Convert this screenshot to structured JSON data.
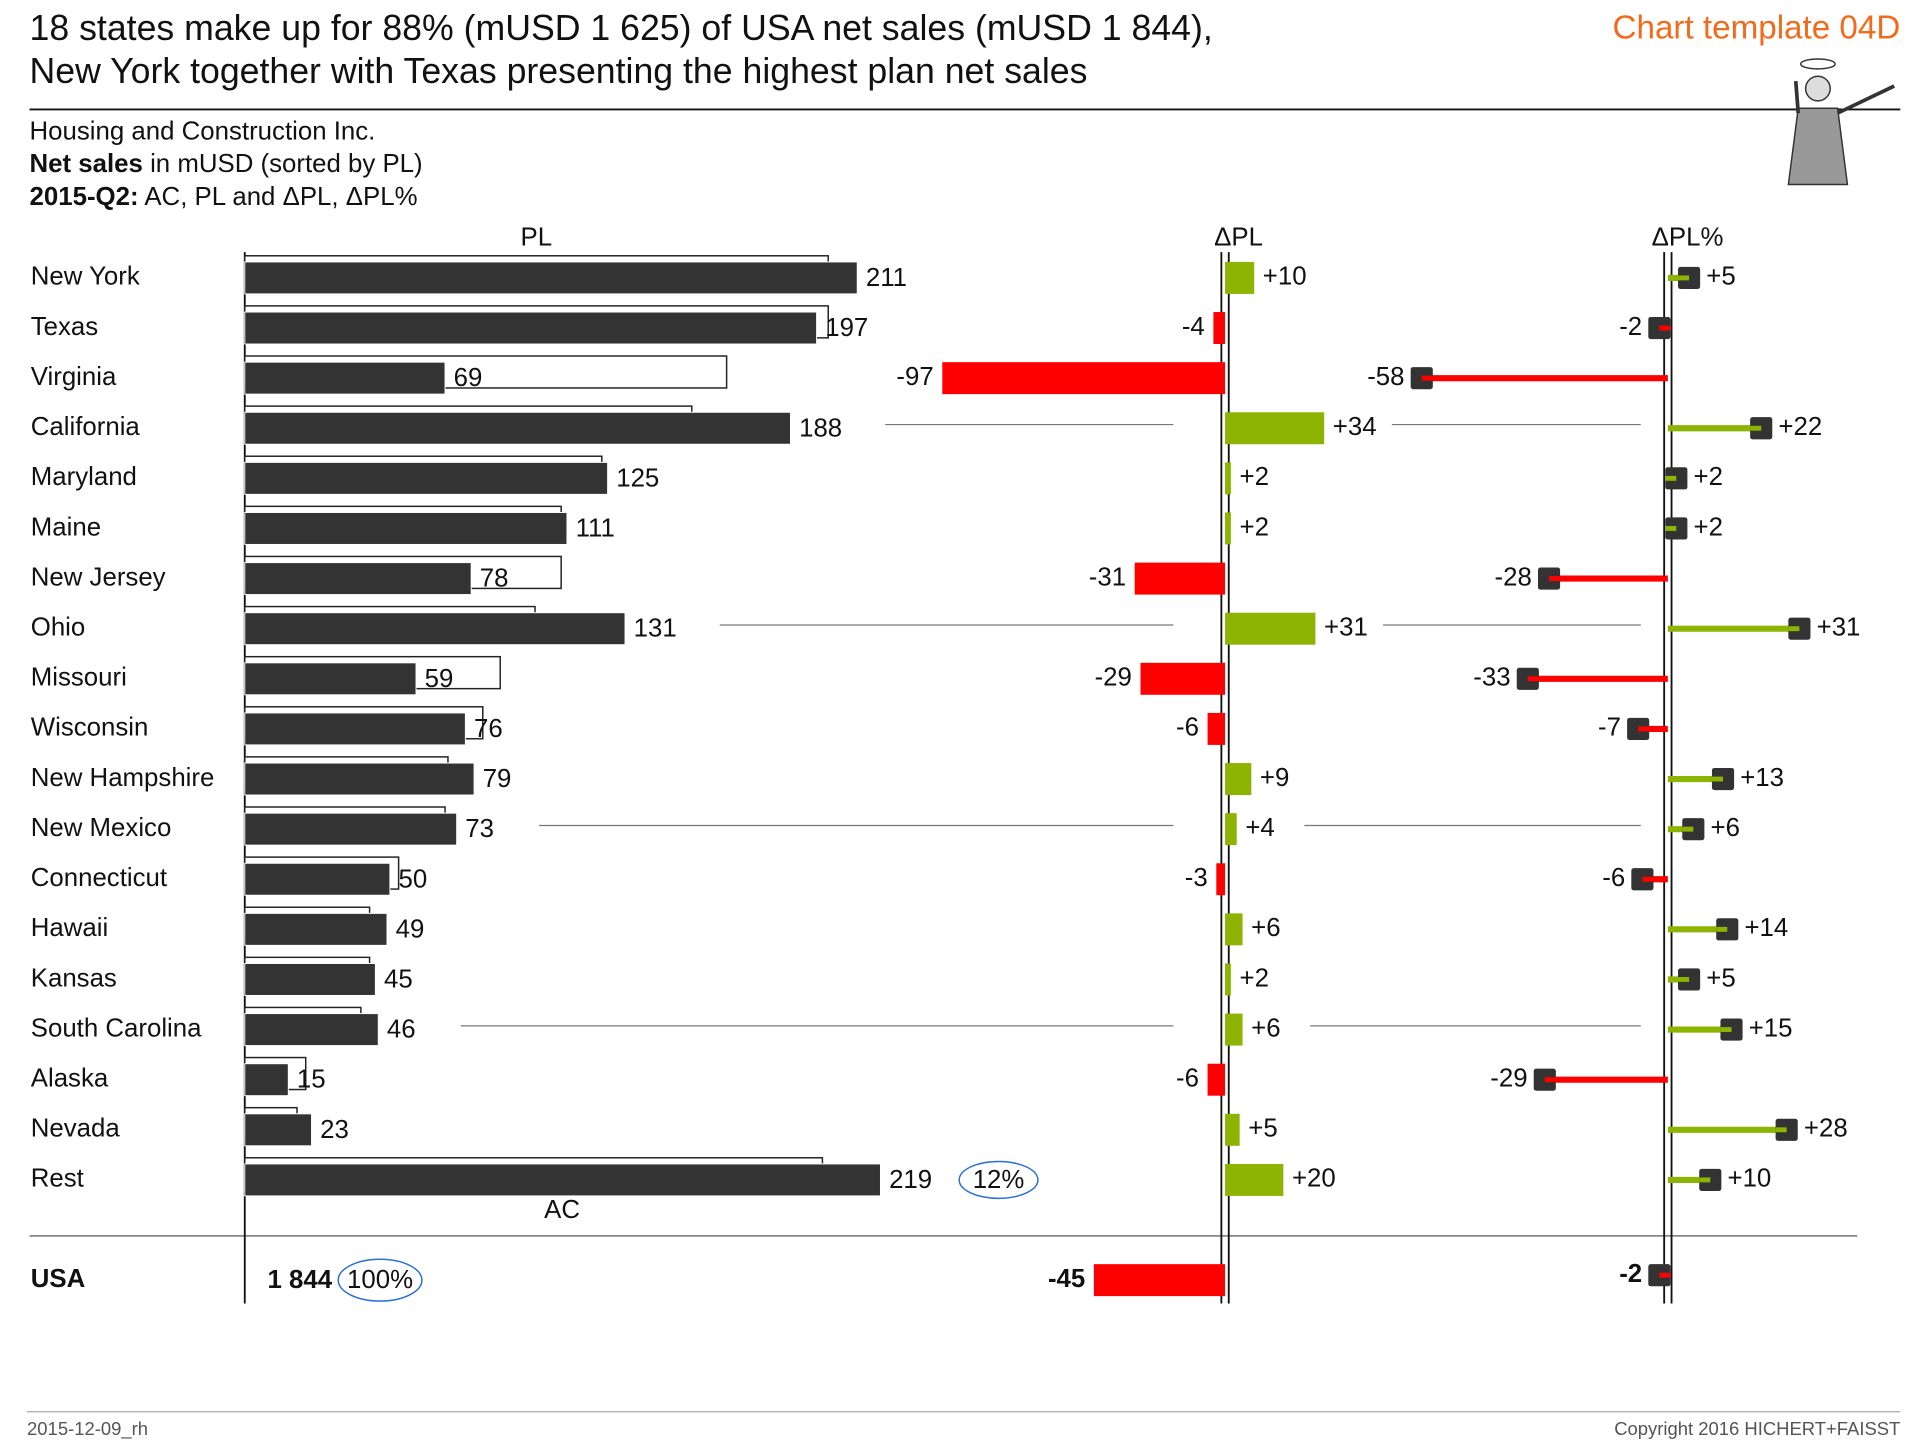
{
  "chart_data": {
    "type": "bar",
    "title": [
      "18 states make up for 88% (mUSD 1 625) of USA net sales (mUSD 1 844),",
      "New York together with Texas presenting the highest plan net sales"
    ],
    "template": "Chart template 04D",
    "subtitle": {
      "company": "Housing and Construction Inc.",
      "measure_bold": "Net sales",
      "measure": " in mUSD (sorted by PL)",
      "period_bold": "2015-Q2:",
      "period": " AC, PL and ΔPL, ΔPL%"
    },
    "headers": {
      "pl": "PL",
      "ac": "AC",
      "dpl": "ΔPL",
      "dpl_pct": "ΔPL%"
    },
    "categories": [
      "New York",
      "Texas",
      "Virginia",
      "California",
      "Maryland",
      "Maine",
      "New Jersey",
      "Ohio",
      "Missouri",
      "Wisconsin",
      "New Hampshire",
      "New Mexico",
      "Connecticut",
      "Hawaii",
      "Kansas",
      "South Carolina",
      "Alaska",
      "Nevada",
      "Rest"
    ],
    "series": [
      {
        "name": "AC",
        "color": "#333333",
        "values": [
          211,
          197,
          69,
          188,
          125,
          111,
          78,
          131,
          59,
          76,
          79,
          73,
          50,
          49,
          45,
          46,
          15,
          23,
          219
        ]
      },
      {
        "name": "PL",
        "color": "#ffffff",
        "values": [
          201,
          201,
          166,
          154,
          123,
          109,
          109,
          100,
          88,
          82,
          70,
          69,
          53,
          43,
          43,
          40,
          21,
          18,
          199
        ]
      },
      {
        "name": "ΔPL",
        "values": [
          10,
          -4,
          -97,
          34,
          2,
          2,
          -31,
          31,
          -29,
          -6,
          9,
          4,
          -3,
          6,
          2,
          6,
          -6,
          5,
          20
        ],
        "value_labels": [
          "+10",
          "-4",
          "-97",
          "+34",
          "+2",
          "+2",
          "-31",
          "+31",
          "-29",
          "-6",
          "+9",
          "+4",
          "-3",
          "+6",
          "+2",
          "+6",
          "-6",
          "+5",
          "+20"
        ]
      },
      {
        "name": "ΔPL%",
        "values": [
          5,
          -2,
          -58,
          22,
          2,
          2,
          -28,
          31,
          -33,
          -7,
          13,
          6,
          -6,
          14,
          5,
          15,
          -29,
          28,
          10
        ],
        "value_labels": [
          "+5",
          "-2",
          "-58",
          "+22",
          "+2",
          "+2",
          "-28",
          "+31",
          "-33",
          "-7",
          "+13",
          "+6",
          "-6",
          "+14",
          "+5",
          "+15",
          "-29",
          "+28",
          "+10"
        ]
      }
    ],
    "rest_share": {
      "value": 12,
      "label": "12%"
    },
    "total": {
      "label": "USA",
      "ac": 1844,
      "ac_label": "1 844",
      "share": 100,
      "share_label": "100%",
      "dpl": -45,
      "dpl_pct": -2
    },
    "positive_color": "#8cb400",
    "negative_color": "#ff0000",
    "footer": {
      "date": "2015-12-09_rh",
      "copyright": "Copyright 2016 HICHERT+FAISST"
    }
  }
}
